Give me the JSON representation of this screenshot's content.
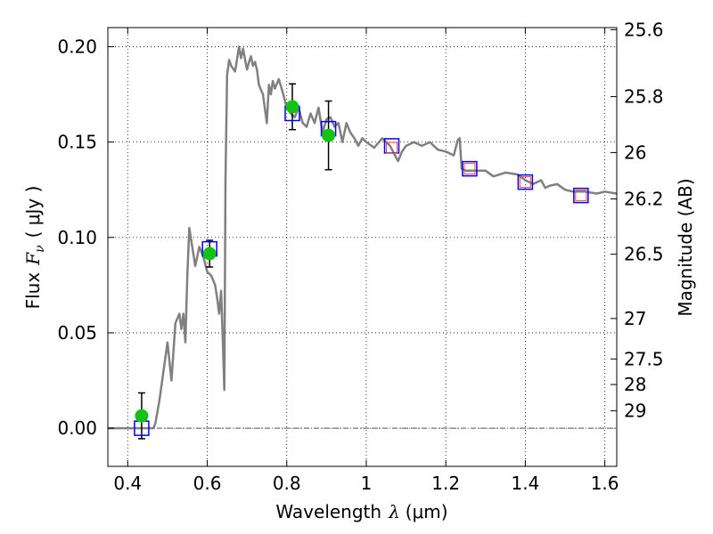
{
  "chart_data": {
    "type": "scatter",
    "title": "",
    "xlabel": "Wavelength",
    "xlabel_math": "λ",
    "xlabel_unit": "(μm)",
    "ylabel": "Flux",
    "ylabel_math": "F",
    "ylabel_math_sub": "ν",
    "ylabel_unit": "( μJy )",
    "y2label": "Magnitude (AB)",
    "xlim": [
      0.35,
      1.63
    ],
    "ylim": [
      -0.02,
      0.21
    ],
    "xticks": [
      0.4,
      0.6,
      0.8,
      1.0,
      1.2,
      1.4,
      1.6
    ],
    "xtick_labels": [
      "0.4",
      "0.6",
      "0.8",
      "1",
      "1.2",
      "1.4",
      "1.6"
    ],
    "yticks": [
      0.0,
      0.05,
      0.1,
      0.15,
      0.2
    ],
    "ytick_labels": [
      "0.00",
      "0.05",
      "0.10",
      "0.15",
      "0.20"
    ],
    "y2_ticks": [
      {
        "label": "25.6",
        "flux": 0.2089
      },
      {
        "label": "25.8",
        "flux": 0.1738
      },
      {
        "label": "26",
        "flux": 0.1445
      },
      {
        "label": "26.2",
        "flux": 0.1202
      },
      {
        "label": "26.5",
        "flux": 0.0912
      },
      {
        "label": "27",
        "flux": 0.0575
      },
      {
        "label": "27.5",
        "flux": 0.0363
      },
      {
        "label": "28",
        "flux": 0.0229
      },
      {
        "label": "29",
        "flux": 0.0091
      }
    ],
    "grid": true,
    "colors": {
      "model": "#808080",
      "observed": "#14c214",
      "model_bands": "#0000ff",
      "predicted": "#ff4040",
      "errorbar": "#000000",
      "zero_line": "#555555"
    },
    "series": [
      {
        "kind": "line",
        "x": [
          0.35,
          0.44,
          0.465,
          0.47,
          0.48,
          0.5,
          0.51,
          0.515,
          0.52,
          0.53,
          0.535,
          0.54,
          0.545,
          0.55,
          0.555,
          0.56,
          0.57,
          0.58,
          0.59,
          0.6,
          0.61,
          0.62,
          0.625,
          0.63,
          0.635,
          0.64,
          0.643,
          0.646,
          0.65,
          0.655,
          0.66,
          0.67,
          0.68,
          0.685,
          0.69,
          0.7,
          0.705,
          0.71,
          0.715,
          0.72,
          0.725,
          0.73,
          0.74,
          0.75,
          0.755,
          0.76,
          0.765,
          0.77,
          0.78,
          0.79,
          0.8,
          0.81,
          0.82,
          0.83,
          0.84,
          0.85,
          0.86,
          0.87,
          0.88,
          0.89,
          0.9,
          0.91,
          0.92,
          0.93,
          0.94,
          0.95,
          0.96,
          0.97,
          0.98,
          0.99,
          1.0,
          1.02,
          1.04,
          1.06,
          1.08,
          1.09,
          1.1,
          1.12,
          1.14,
          1.16,
          1.18,
          1.2,
          1.22,
          1.23,
          1.235,
          1.24,
          1.25,
          1.28,
          1.3,
          1.32,
          1.35,
          1.38,
          1.4,
          1.42,
          1.44,
          1.45,
          1.46,
          1.48,
          1.5,
          1.52,
          1.55,
          1.58,
          1.6,
          1.63
        ],
        "y": [
          0.0,
          0.0,
          0.0,
          0.003,
          0.015,
          0.045,
          0.025,
          0.04,
          0.055,
          0.06,
          0.052,
          0.06,
          0.045,
          0.08,
          0.105,
          0.098,
          0.085,
          0.095,
          0.09,
          0.082,
          0.08,
          0.075,
          0.068,
          0.06,
          0.072,
          0.04,
          0.02,
          0.13,
          0.185,
          0.193,
          0.19,
          0.187,
          0.2,
          0.194,
          0.199,
          0.188,
          0.192,
          0.195,
          0.19,
          0.192,
          0.188,
          0.18,
          0.175,
          0.16,
          0.18,
          0.175,
          0.182,
          0.178,
          0.183,
          0.176,
          0.168,
          0.165,
          0.163,
          0.168,
          0.16,
          0.158,
          0.165,
          0.16,
          0.168,
          0.155,
          0.162,
          0.163,
          0.158,
          0.16,
          0.15,
          0.16,
          0.155,
          0.152,
          0.148,
          0.152,
          0.15,
          0.147,
          0.152,
          0.148,
          0.14,
          0.145,
          0.148,
          0.15,
          0.148,
          0.15,
          0.146,
          0.145,
          0.143,
          0.151,
          0.152,
          0.136,
          0.135,
          0.135,
          0.135,
          0.132,
          0.134,
          0.133,
          0.13,
          0.128,
          0.13,
          0.126,
          0.127,
          0.128,
          0.125,
          0.124,
          0.124,
          0.123,
          0.124,
          0.123
        ]
      },
      {
        "kind": "observed",
        "x": [
          0.435,
          0.606,
          0.814,
          0.905
        ],
        "y": [
          0.0065,
          0.0915,
          0.1685,
          0.1535
        ],
        "yerr": [
          0.012,
          0.007,
          0.012,
          0.018
        ]
      },
      {
        "kind": "model_bands",
        "x": [
          0.435,
          0.606,
          0.814,
          0.905,
          1.064,
          1.26,
          1.4,
          1.54
        ],
        "y": [
          0.0,
          0.094,
          0.165,
          0.157,
          0.148,
          0.136,
          0.129,
          0.122
        ]
      },
      {
        "kind": "predicted",
        "x": [
          1.064,
          1.26,
          1.4,
          1.54
        ],
        "y": [
          0.147,
          0.136,
          0.129,
          0.122
        ]
      }
    ]
  }
}
